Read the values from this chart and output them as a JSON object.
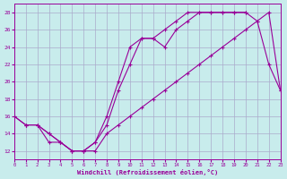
{
  "background_color": "#c8ecec",
  "grid_color": "#aaaacc",
  "line_color": "#990099",
  "marker": "+",
  "xlabel": "Windchill (Refroidissement éolien,°C)",
  "xlim": [
    0,
    23
  ],
  "ylim": [
    11,
    29
  ],
  "yticks": [
    12,
    14,
    16,
    18,
    20,
    22,
    24,
    26,
    28
  ],
  "xticks": [
    0,
    1,
    2,
    3,
    4,
    5,
    6,
    7,
    8,
    9,
    10,
    11,
    12,
    13,
    14,
    15,
    16,
    17,
    18,
    19,
    20,
    21,
    22,
    23
  ],
  "line1_x": [
    0,
    1,
    2,
    3,
    4,
    5,
    6,
    7,
    8,
    9,
    10,
    11,
    12,
    13,
    14,
    15,
    16,
    17,
    18,
    19,
    20
  ],
  "line1_y": [
    16,
    15,
    15,
    14,
    13,
    12,
    12,
    13,
    16,
    20,
    24,
    25,
    25,
    24,
    26,
    27,
    28,
    28,
    28,
    28,
    28
  ],
  "line2_x": [
    0,
    1,
    2,
    3,
    4,
    5,
    6,
    7,
    8,
    9,
    10,
    11,
    12,
    13,
    14,
    15,
    16,
    17,
    18,
    19,
    20,
    21,
    22,
    23
  ],
  "line2_y": [
    16,
    15,
    15,
    13,
    13,
    12,
    12,
    12,
    14,
    15,
    16,
    17,
    18,
    19,
    20,
    21,
    22,
    23,
    24,
    25,
    26,
    27,
    28,
    19
  ],
  "line3_x": [
    1,
    2,
    3,
    4,
    5,
    6,
    7,
    8,
    9,
    10,
    11,
    12,
    13,
    14,
    15,
    16,
    17,
    18,
    19,
    20,
    21,
    22,
    23
  ],
  "line3_y": [
    15,
    15,
    14,
    13,
    12,
    12,
    13,
    15,
    19,
    22,
    25,
    25,
    26,
    27,
    28,
    28,
    28,
    28,
    28,
    28,
    27,
    22,
    19
  ]
}
